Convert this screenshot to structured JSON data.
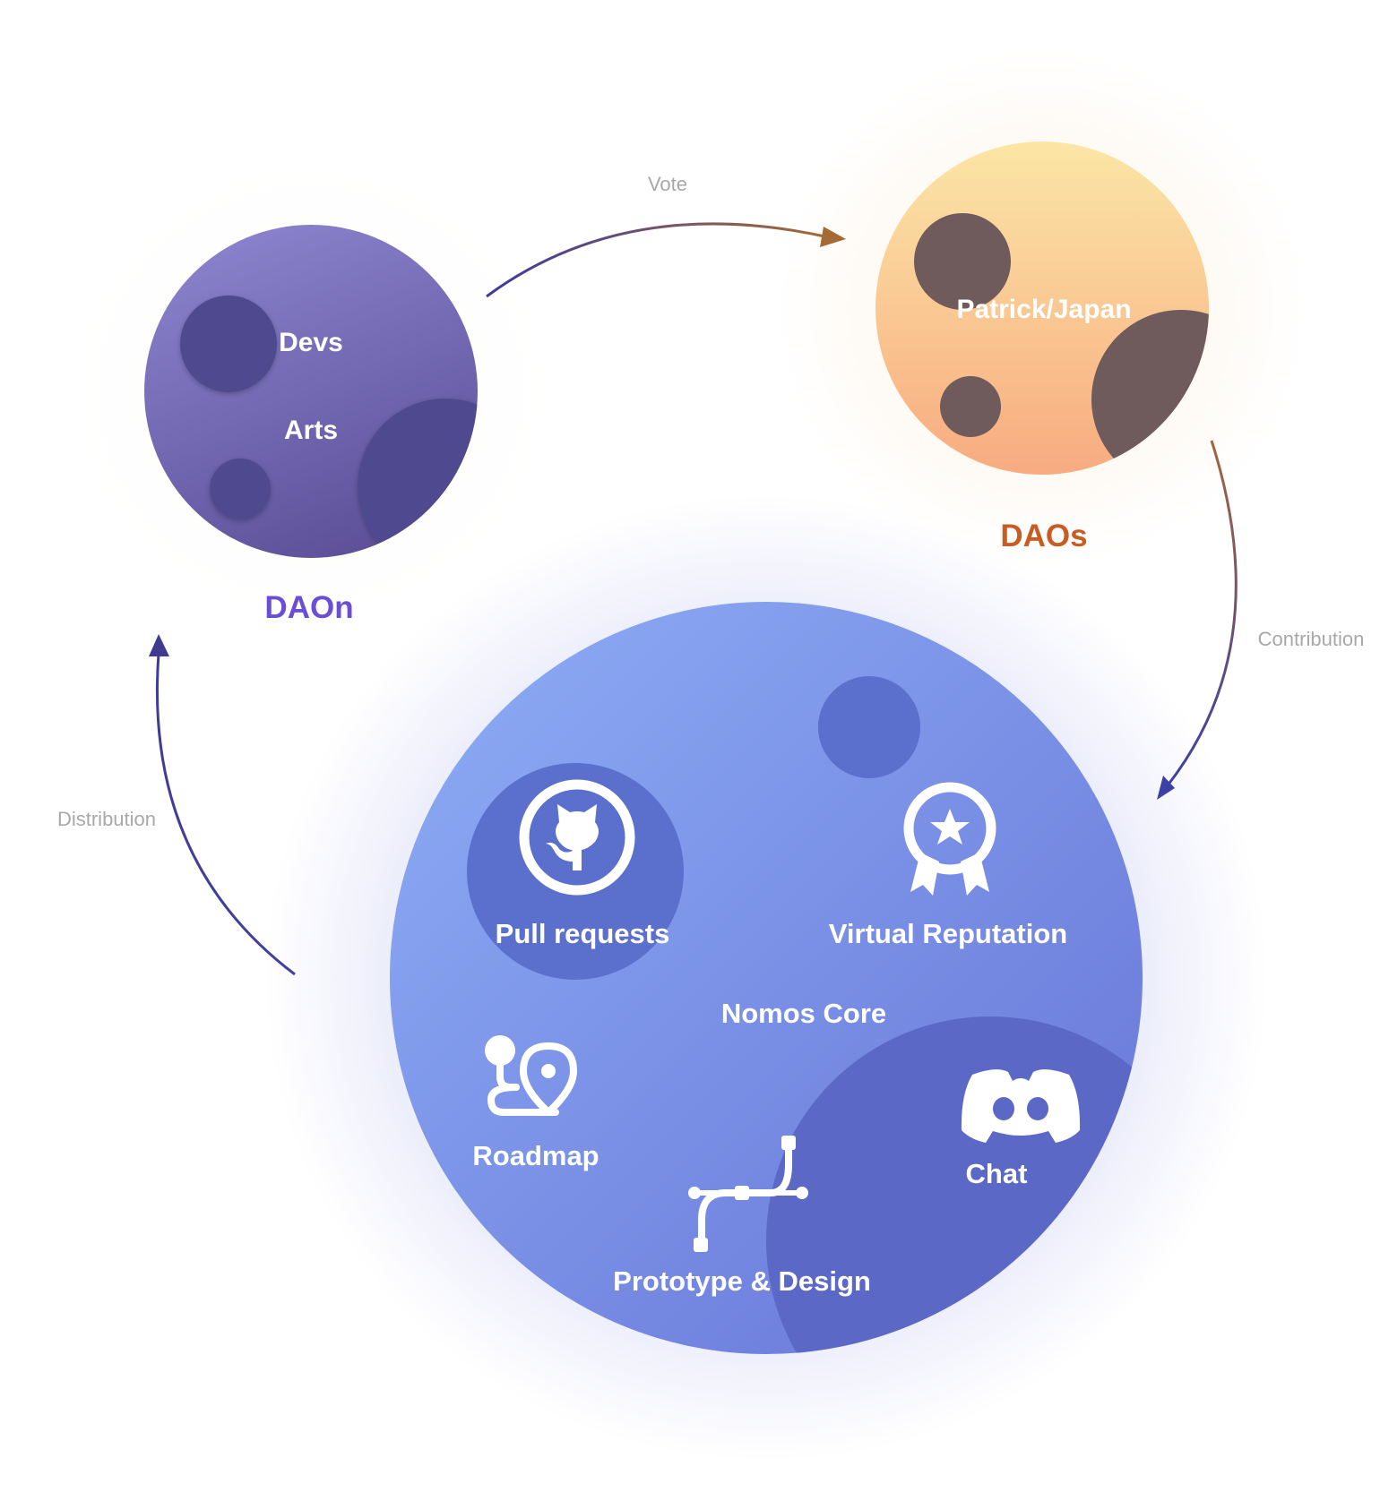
{
  "diagram": {
    "nodes": {
      "daon": {
        "label": "DAOn",
        "inner": [
          "Devs",
          "Arts"
        ],
        "label_color": "#6a4fd6"
      },
      "daos": {
        "label": "DAOs",
        "inner": [
          "Patrick/Japan"
        ],
        "label_color": "#c75d22"
      },
      "core": {
        "label": "Nomos Core",
        "items": {
          "pull_requests": {
            "label": "Pull requests",
            "icon": "github-icon"
          },
          "virtual_reputation": {
            "label": "Virtual Reputation",
            "icon": "award-badge-icon"
          },
          "roadmap": {
            "label": "Roadmap",
            "icon": "route-map-icon"
          },
          "chat": {
            "label": "Chat",
            "icon": "discord-icon"
          },
          "prototype_design": {
            "label": "Prototype & Design",
            "icon": "bezier-pen-icon"
          }
        }
      }
    },
    "edges": {
      "vote": {
        "label": "Vote",
        "from": "DAOn",
        "to": "DAOs"
      },
      "contribution": {
        "label": "Contribution",
        "from": "DAOs",
        "to": "Nomos Core"
      },
      "distribution": {
        "label": "Distribution",
        "from": "Nomos Core",
        "to": "DAOn"
      }
    },
    "colors": {
      "edge_label": "#a8a8a8",
      "planet_text": "#ffffff"
    }
  }
}
